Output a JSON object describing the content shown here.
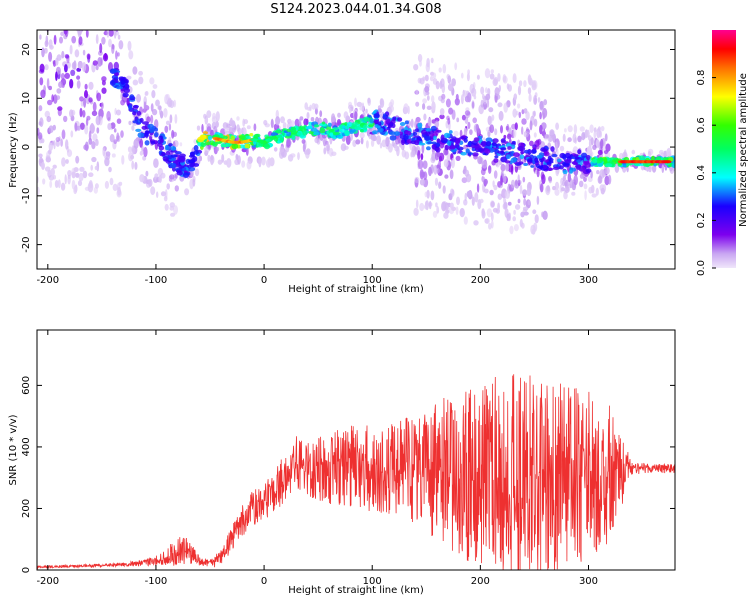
{
  "title": "S124.2023.044.01.34.G08",
  "chart_data": [
    {
      "type": "heatmap",
      "panel": "spectrogram",
      "xlabel": "Height of straight line (km)",
      "ylabel": "Frequency (Hz)",
      "xlim": [
        -210,
        380
      ],
      "ylim": [
        -25,
        24
      ],
      "xticks": [
        -200,
        -100,
        0,
        100,
        200,
        300
      ],
      "yticks": [
        -20,
        -10,
        0,
        10,
        20
      ],
      "colorbar": {
        "label": "Normalized spectral amplitude",
        "range": [
          0,
          1
        ],
        "ticks": [
          "0.0",
          "0.2",
          "0.4",
          "0.6",
          "0.8"
        ],
        "colormap": [
          "#e8d8f6",
          "#7d00ee",
          "#0000ff",
          "#00ffff",
          "#00ff00",
          "#ffff00",
          "#ff0000",
          "#ff00a0"
        ]
      },
      "ridge_x": [
        -140,
        -130,
        -120,
        -110,
        -100,
        -90,
        -80,
        -70,
        -65,
        -60,
        -55,
        -50,
        -40,
        -30,
        -20,
        -10,
        0,
        10,
        20,
        30,
        40,
        50,
        60,
        70,
        80,
        90,
        100,
        110,
        120,
        130,
        150,
        200,
        250,
        280,
        300,
        320,
        340,
        360,
        380
      ],
      "ridge_y": [
        15,
        13,
        7,
        3,
        2,
        -1,
        -3,
        -5,
        -3,
        0,
        2,
        2,
        1.5,
        1,
        1,
        1.5,
        1,
        2,
        2.5,
        3,
        3.5,
        4,
        3.5,
        3,
        4,
        4.5,
        5,
        5,
        4,
        3,
        2,
        0,
        -2,
        -3,
        -3,
        -3,
        -3,
        -3,
        -3
      ]
    },
    {
      "type": "line",
      "panel": "snr",
      "xlabel": "Height of straight line (km)",
      "ylabel": "SNR (10 * v/v)",
      "xlim": [
        -210,
        380
      ],
      "ylim": [
        0,
        780
      ],
      "xticks": [
        -200,
        -100,
        0,
        100,
        200,
        300
      ],
      "yticks": [
        0,
        200,
        400,
        600
      ],
      "color": "#ee3030",
      "series": [
        {
          "x": [
            -210,
            -180,
            -150,
            -120,
            -100,
            -90,
            -80,
            -70,
            -60,
            -50,
            -40,
            -30,
            -20,
            -10,
            0,
            10,
            20,
            30,
            40,
            60,
            80,
            100,
            120,
            140,
            160,
            180,
            200,
            220,
            240,
            260,
            280,
            300,
            320,
            340,
            360,
            380
          ],
          "mean": [
            10,
            12,
            15,
            20,
            30,
            45,
            70,
            60,
            30,
            20,
            40,
            100,
            160,
            200,
            220,
            260,
            300,
            350,
            330,
            330,
            330,
            330,
            330,
            330,
            320,
            310,
            300,
            300,
            300,
            300,
            300,
            300,
            310,
            330,
            330,
            330
          ],
          "amplitude": [
            4,
            4,
            5,
            8,
            15,
            30,
            60,
            40,
            15,
            12,
            30,
            40,
            50,
            60,
            60,
            70,
            80,
            90,
            90,
            120,
            140,
            140,
            150,
            180,
            230,
            270,
            300,
            340,
            340,
            320,
            300,
            280,
            230,
            20,
            15,
            15
          ]
        }
      ]
    }
  ]
}
